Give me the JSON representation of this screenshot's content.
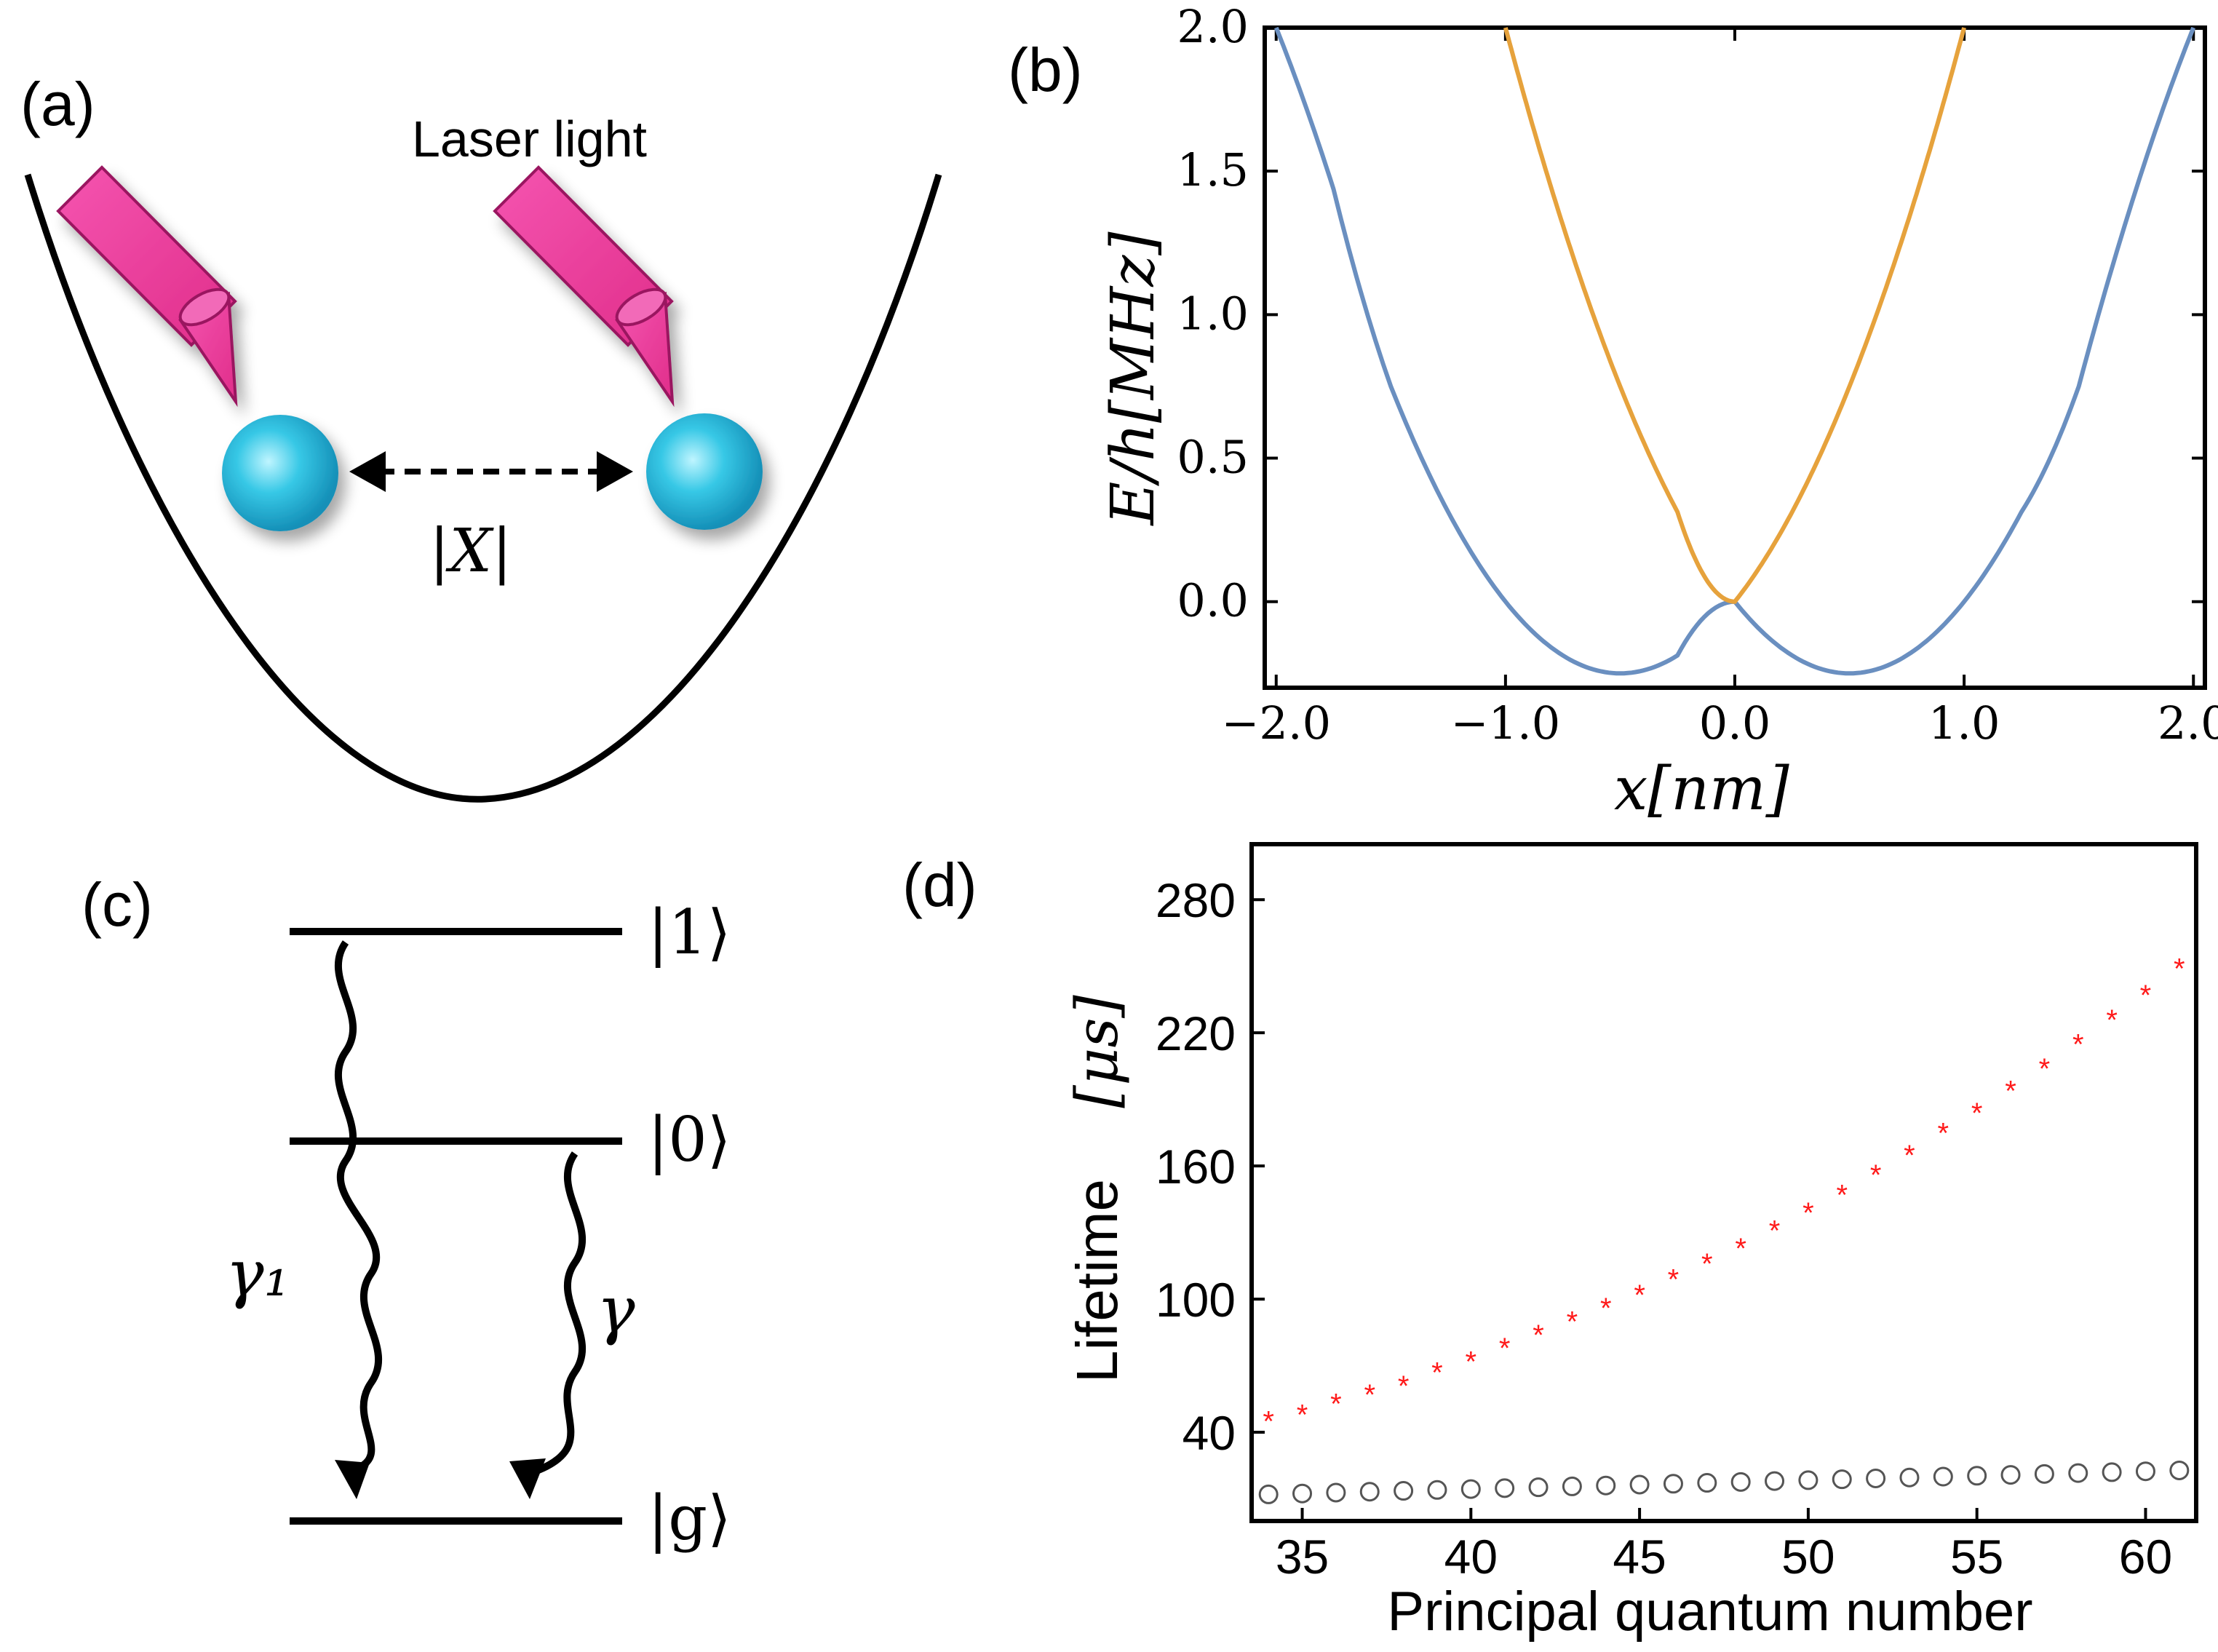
{
  "panels": {
    "a": {
      "label": "(a)",
      "laser_text": "Laser light",
      "distance_label": "|X|"
    },
    "c": {
      "label": "(c)",
      "levels": [
        "|1⟩",
        "|0⟩",
        "|g⟩"
      ],
      "rates": [
        "γ₁",
        "γ"
      ]
    }
  },
  "colors": {
    "blue_curve": "#6a8fc0",
    "orange_curve": "#e6a23c",
    "laser": "#ef3f9b",
    "atom": "#37c8e6",
    "marker_red": "#ff1a1a",
    "marker_gray": "#555555"
  },
  "chart_data": [
    {
      "id": "b",
      "panel_label": "(b)",
      "type": "line",
      "xlabel": "x[nm]",
      "ylabel": "E/h[MHz]",
      "xlim": [
        -2.05,
        2.05
      ],
      "ylim": [
        -0.3,
        2.0
      ],
      "xticks": [
        -2.0,
        -1.0,
        0.0,
        1.0,
        2.0
      ],
      "xtick_labels": [
        "−2.0",
        "−1.0",
        "0.0",
        "1.0",
        "2.0"
      ],
      "yticks": [
        0.0,
        0.5,
        1.0,
        1.5,
        2.0
      ],
      "ytick_labels": [
        "0.0",
        "0.5",
        "1.0",
        "1.5",
        "2.0"
      ],
      "series": [
        {
          "name": "blue",
          "color": "#6a8fc0",
          "x": [
            -2.0,
            -1.75,
            -1.5,
            -1.25,
            -1.0,
            -0.75,
            -0.5,
            -0.25,
            0.0,
            0.25,
            0.5,
            0.75,
            1.0,
            1.25,
            1.5,
            1.75,
            2.0
          ],
          "y": [
            2.0,
            1.4375,
            0.75,
            0.3125,
            0.0,
            -0.1875,
            -0.25,
            -0.1875,
            0.0,
            -0.1875,
            -0.25,
            -0.1875,
            0.0,
            0.3125,
            0.75,
            1.4375,
            2.0
          ]
        },
        {
          "name": "orange",
          "color": "#e6a23c",
          "x": [
            -1.0,
            -0.75,
            -0.5,
            -0.25,
            0.0,
            0.25,
            0.5,
            0.75,
            1.0
          ],
          "y": [
            2.0,
            1.3125,
            0.75,
            0.3125,
            0.0,
            0.3125,
            0.75,
            1.3125,
            2.0
          ]
        }
      ]
    },
    {
      "id": "d",
      "panel_label": "(d)",
      "type": "scatter",
      "xlabel": "Principal quantum number",
      "ylabel": "Lifetime",
      "ylabel_unit": "[μs]",
      "xlim": [
        33.5,
        61.5
      ],
      "ylim": [
        0,
        305
      ],
      "xticks": [
        35,
        40,
        45,
        50,
        55,
        60
      ],
      "xtick_labels": [
        "35",
        "40",
        "45",
        "50",
        "55",
        "60"
      ],
      "yticks": [
        40,
        100,
        160,
        220,
        280
      ],
      "ytick_labels": [
        "40",
        "100",
        "160",
        "220",
        "280"
      ],
      "series": [
        {
          "name": "red-star",
          "marker": "*",
          "color": "#ff1a1a",
          "x": [
            34,
            35,
            36,
            37,
            38,
            39,
            40,
            41,
            42,
            43,
            44,
            45,
            46,
            47,
            48,
            49,
            50,
            51,
            52,
            53,
            54,
            55,
            56,
            57,
            58,
            59,
            60,
            61
          ],
          "y": [
            47,
            50,
            55,
            59,
            63,
            69,
            74,
            80,
            86,
            92,
            98,
            104,
            111,
            118,
            125,
            133,
            141,
            149,
            158,
            167,
            177,
            186,
            196,
            206,
            217,
            228,
            239,
            251
          ]
        },
        {
          "name": "gray-circle",
          "marker": "o",
          "color": "#555555",
          "x": [
            34,
            35,
            36,
            37,
            38,
            39,
            40,
            41,
            42,
            43,
            44,
            45,
            46,
            47,
            48,
            49,
            50,
            51,
            52,
            53,
            54,
            55,
            56,
            57,
            58,
            59,
            60,
            61
          ],
          "y": [
            12,
            12.4,
            12.8,
            13.2,
            13.6,
            14.0,
            14.4,
            14.8,
            15.2,
            15.6,
            16.0,
            16.4,
            16.8,
            17.2,
            17.6,
            18.0,
            18.4,
            18.8,
            19.2,
            19.6,
            20.0,
            20.4,
            20.8,
            21.2,
            21.6,
            22.0,
            22.4,
            22.8
          ]
        }
      ]
    }
  ]
}
